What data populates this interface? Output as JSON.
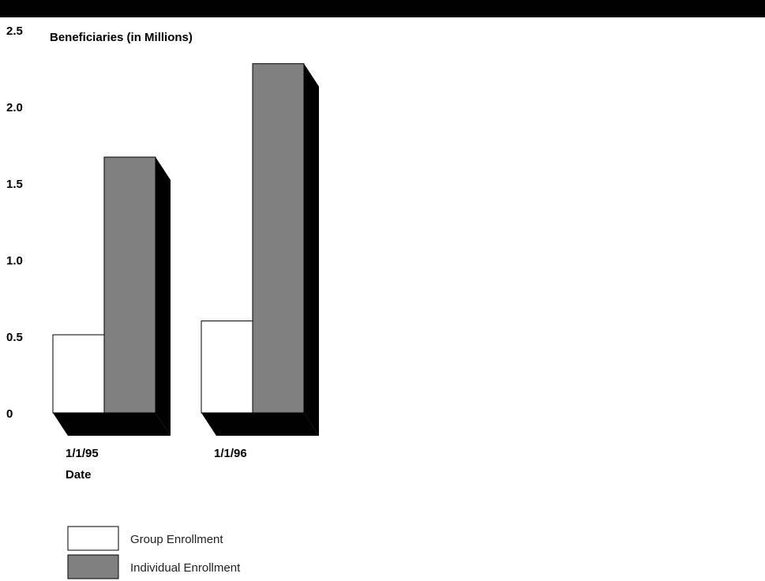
{
  "chart_data": {
    "type": "bar",
    "ylabel": "Beneficiaries (in Millions)",
    "xlabel": "Date",
    "categories": [
      "1/1/95",
      "1/1/96"
    ],
    "series": [
      {
        "name": "Group Enrollment",
        "values": [
          0.51,
          0.6
        ],
        "color": "#ffffff"
      },
      {
        "name": "Individual Enrollment",
        "values": [
          1.67,
          2.28
        ],
        "color": "#808080"
      }
    ],
    "ylim": [
      0,
      2.5
    ],
    "yticks": [
      "0",
      "0.5",
      "1.0",
      "1.5",
      "2.0",
      "2.5"
    ],
    "grid": false,
    "legend_position": "bottom-left",
    "style": "3d-shadow"
  },
  "colors": {
    "top_band": "#000000",
    "shadow": "#000000"
  }
}
